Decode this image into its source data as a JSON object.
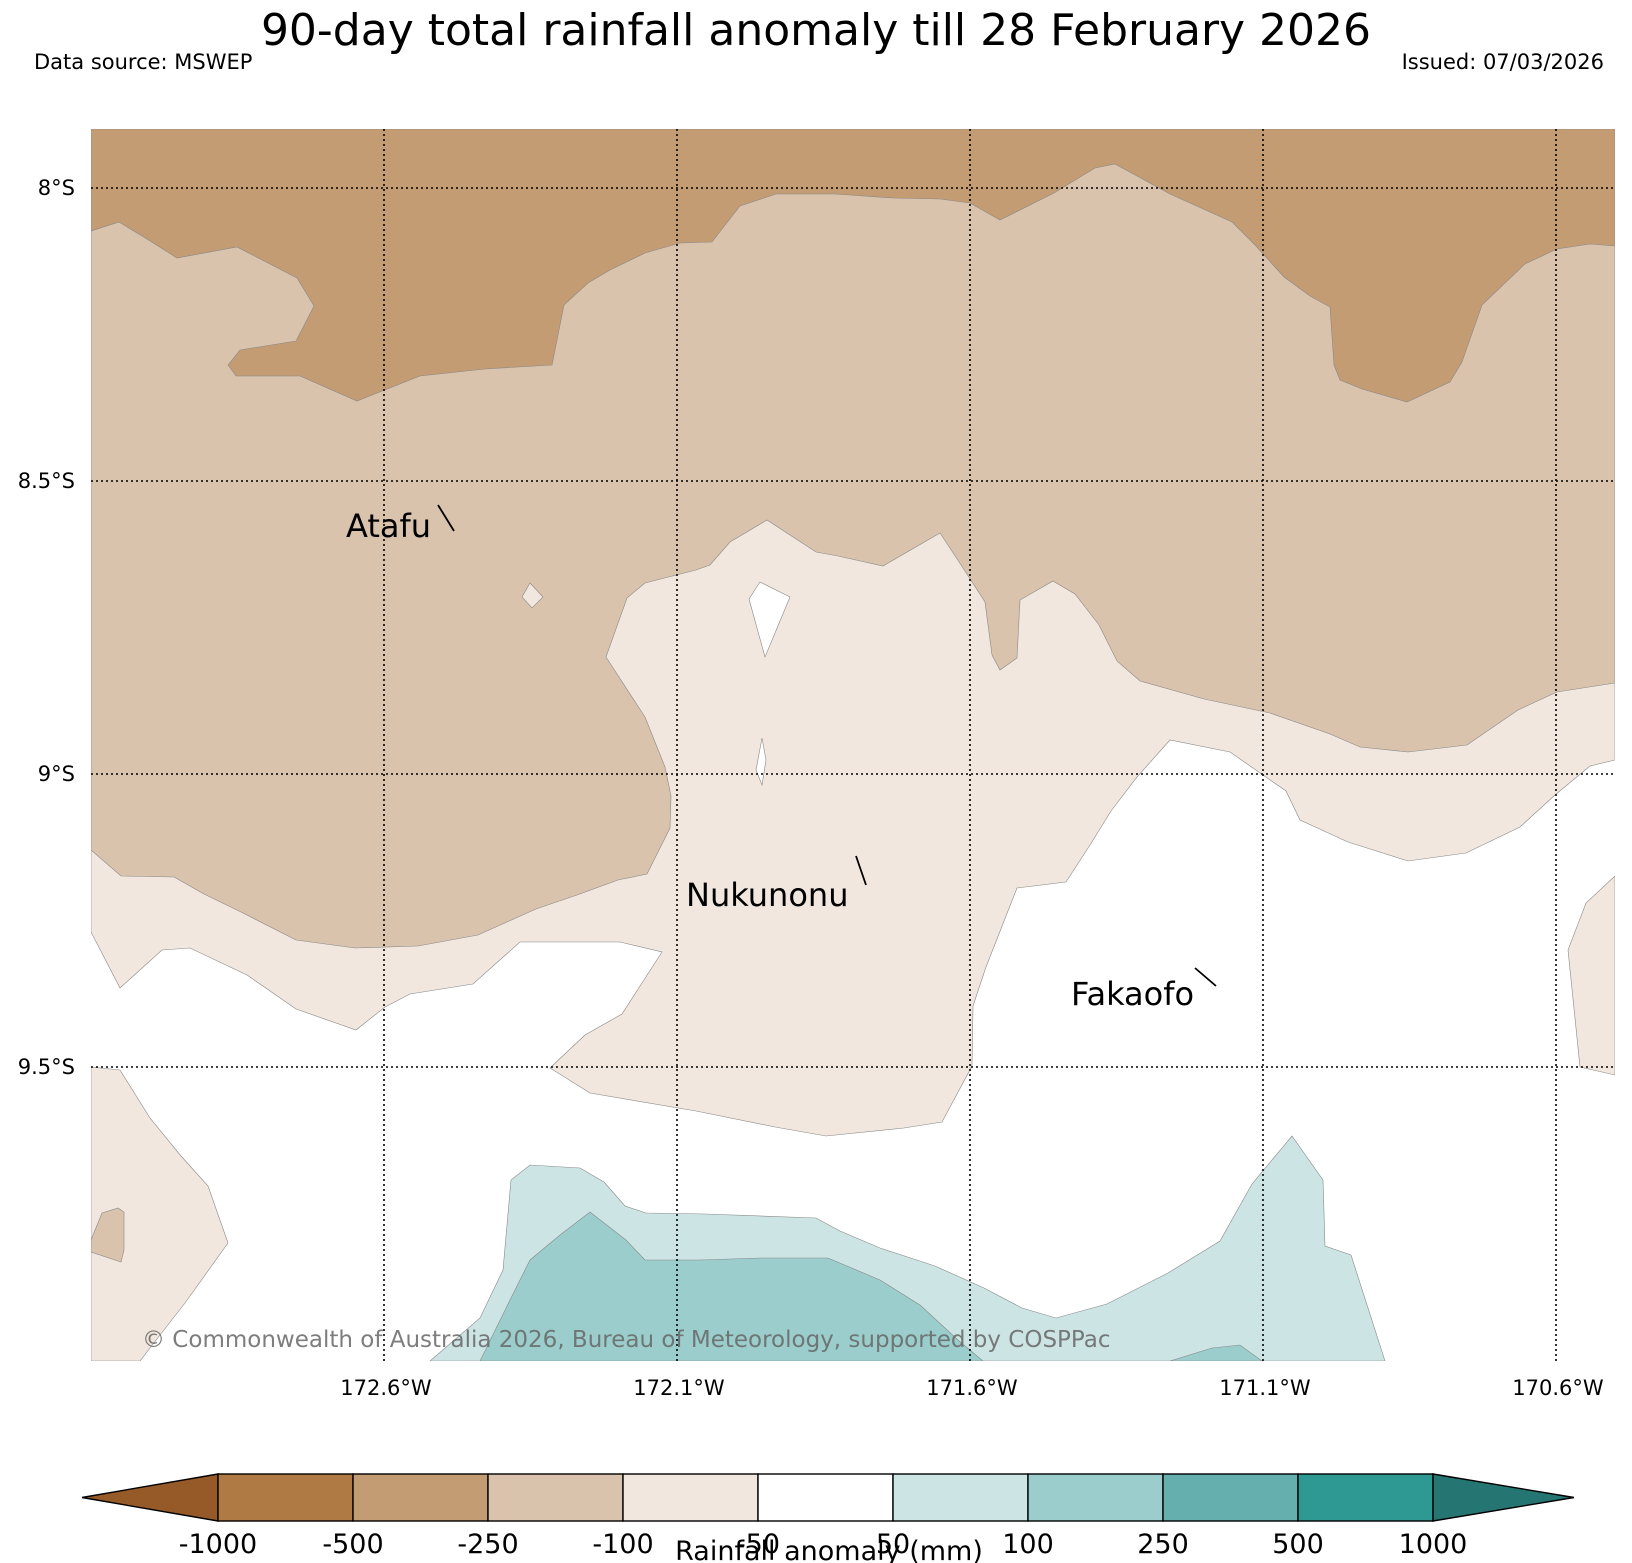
{
  "header": {
    "title": "90-day total rainfall anomaly till 28 February 2026",
    "data_source": "Data source: MSWEP",
    "issued": "Issued: 07/03/2026"
  },
  "map": {
    "lat_labels": [
      "8°S",
      "8.5°S",
      "9°S",
      "9.5°S"
    ],
    "lon_labels": [
      "172.6°W",
      "172.1°W",
      "171.6°W",
      "171.1°W",
      "170.6°W"
    ],
    "places": [
      {
        "name": "Atafu"
      },
      {
        "name": "Nukunonu"
      },
      {
        "name": "Fakaofo"
      }
    ],
    "copyright": "© Commonwealth of Australia 2026, Bureau of Meteorology, supported by COSPPac"
  },
  "colorbar": {
    "title": "Rainfall anomaly (mm)",
    "ticks": [
      "-1000",
      "-500",
      "-250",
      "-100",
      "-50",
      "50",
      "100",
      "250",
      "500",
      "1000"
    ],
    "colors": {
      "lt_-1000": "#955a27",
      "-1000_-500": "#b07a44",
      "-500_-250": "#c49c74",
      "-250_-100": "#dac3ac",
      "-100_-50": "#f1e7de",
      "-50_50": "#ffffff",
      "50_100": "#cce5e4",
      "100_250": "#9bcdcc",
      "250_500": "#65b0ae",
      "500_1000": "#2e9893",
      "gt_1000": "#257573"
    }
  }
}
